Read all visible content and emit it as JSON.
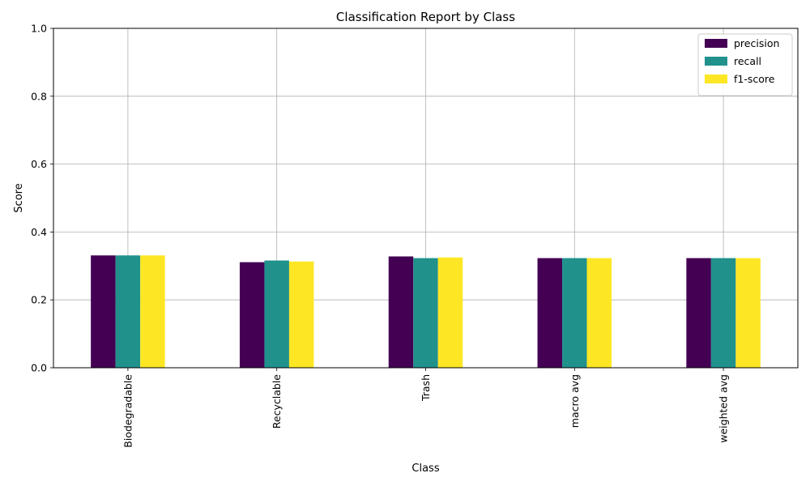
{
  "chart_data": {
    "type": "bar",
    "title": "Classification Report by Class",
    "xlabel": "Class",
    "ylabel": "Score",
    "ylim": [
      0,
      1.0
    ],
    "yticks": [
      "0.0",
      "0.2",
      "0.4",
      "0.6",
      "0.8",
      "1.0"
    ],
    "grid": true,
    "legend_position": "top-right",
    "categories": [
      "Biodegradable",
      "Recyclable",
      "Trash",
      "macro avg",
      "weighted avg"
    ],
    "series": [
      {
        "name": "precision",
        "color": "#440154",
        "values": [
          0.331,
          0.311,
          0.328,
          0.323,
          0.323
        ]
      },
      {
        "name": "recall",
        "color": "#21918c",
        "values": [
          0.331,
          0.316,
          0.323,
          0.323,
          0.323
        ]
      },
      {
        "name": "f1-score",
        "color": "#fde725",
        "values": [
          0.331,
          0.313,
          0.325,
          0.323,
          0.323
        ]
      }
    ]
  }
}
